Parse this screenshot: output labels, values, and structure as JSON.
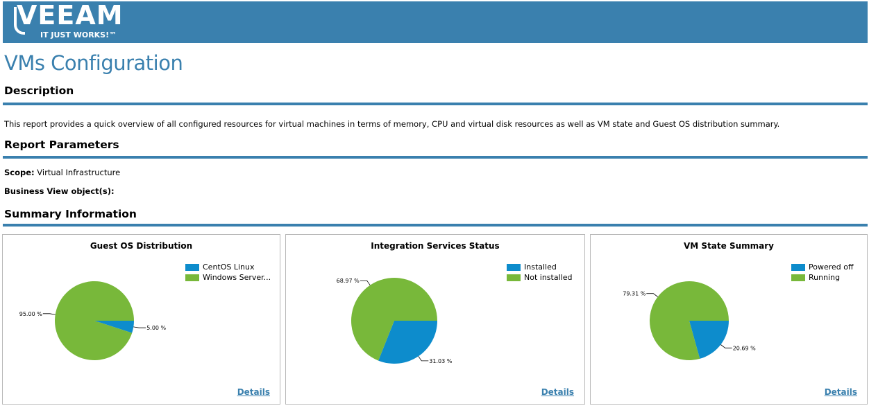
{
  "header": {
    "logo_word": "VEEAM",
    "logo_tagline": "IT JUST WORKS!™"
  },
  "page_title": "VMs Configuration",
  "description": {
    "heading": "Description",
    "text": "This report provides a quick overview of all configured resources for virtual machines in terms of memory, CPU and virtual disk resources as well as VM state and Guest OS distribution summary."
  },
  "parameters": {
    "heading": "Report Parameters",
    "scope_label": "Scope:",
    "scope_value": "Virtual Infrastructure",
    "business_view_label": "Business View object(s):",
    "business_view_value": ""
  },
  "summary": {
    "heading": "Summary Information",
    "details_label": "Details"
  },
  "colors": {
    "brand_blue": "#3a80ae",
    "slice_blue": "#0d8ccc",
    "slice_green": "#78b83a"
  },
  "chart_data": [
    {
      "type": "pie",
      "title": "Guest OS Distribution",
      "categories": [
        "CentOS Linux",
        "Windows Server..."
      ],
      "values": [
        5.0,
        95.0
      ],
      "labels": [
        "5.00 %",
        "95.00 %"
      ],
      "colors": [
        "#0d8ccc",
        "#78b83a"
      ],
      "legend_position": "top-right"
    },
    {
      "type": "pie",
      "title": "Integration Services Status",
      "categories": [
        "Installed",
        "Not installed"
      ],
      "values": [
        31.03,
        68.97
      ],
      "labels": [
        "31.03 %",
        "68.97 %"
      ],
      "colors": [
        "#0d8ccc",
        "#78b83a"
      ],
      "legend_position": "top-right"
    },
    {
      "type": "pie",
      "title": "VM State Summary",
      "categories": [
        "Powered off",
        "Running"
      ],
      "values": [
        20.69,
        79.31
      ],
      "labels": [
        "20.69 %",
        "79.31 %"
      ],
      "colors": [
        "#0d8ccc",
        "#78b83a"
      ],
      "legend_position": "top-right"
    }
  ]
}
